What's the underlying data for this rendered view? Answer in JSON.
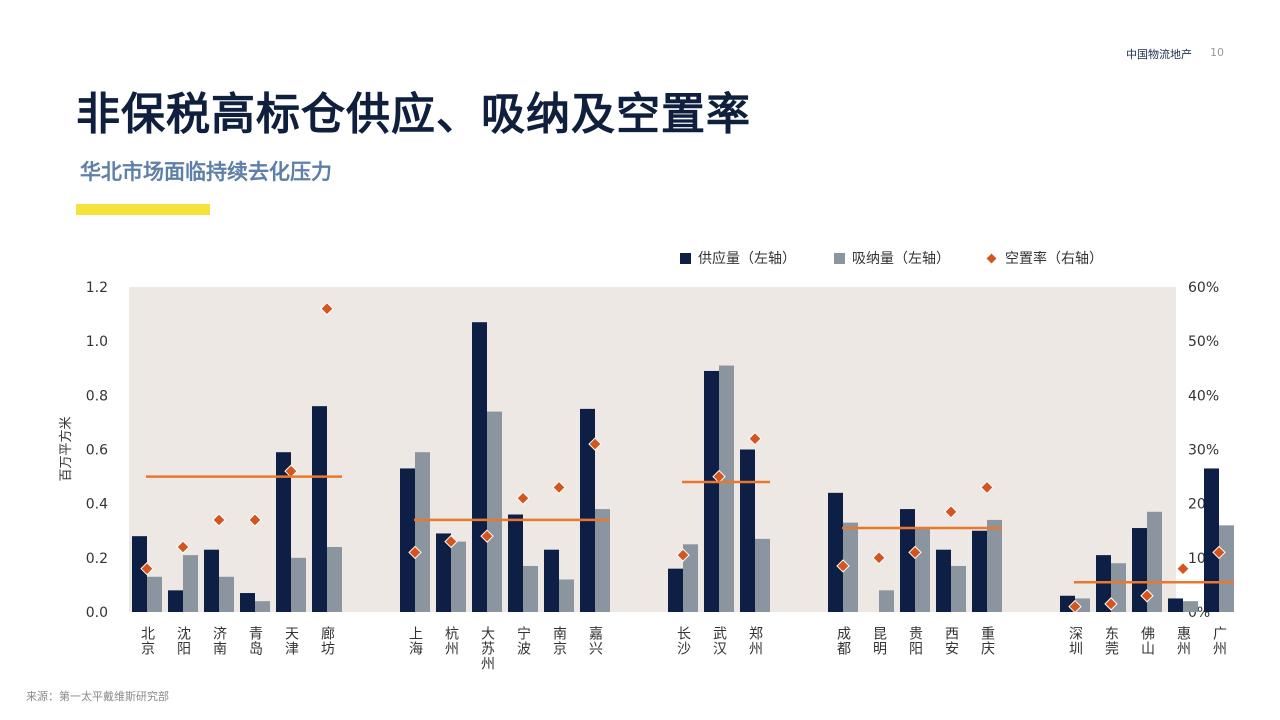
{
  "header": {
    "brand": "中国物流地产",
    "page_number": "10"
  },
  "title": "非保税高标仓供应、吸纳及空置率",
  "subtitle": "华北市场面临持续去化压力",
  "source": "来源：第一太平戴维斯研究部",
  "colors": {
    "supply": "#0e1f45",
    "absorption": "#8b959f",
    "vacancy": "#d4561e",
    "average_line": "#e9772e",
    "plot_bg": "#ede8e3",
    "accent": "#f7e13b"
  },
  "chart_data": {
    "type": "bar",
    "ylabel": "百万平方米",
    "ylim": [
      0,
      1.2
    ],
    "y_ticks": [
      "0.0",
      "0.2",
      "0.4",
      "0.6",
      "0.8",
      "1.0",
      "1.2"
    ],
    "y2lim": [
      0,
      60
    ],
    "y2_ticks": [
      "0%",
      "10%",
      "20%",
      "30%",
      "40%",
      "50%",
      "60%"
    ],
    "legend": {
      "placement": "top-right",
      "supply": "供应量（左轴）",
      "absorption": "吸纳量（左轴）",
      "vacancy": "空置率（右轴）"
    },
    "groups": [
      {
        "categories": [
          "北京",
          "沈阳",
          "济南",
          "青岛",
          "天津",
          "廊坊"
        ],
        "supply": [
          0.28,
          0.08,
          0.23,
          0.07,
          0.59,
          0.76
        ],
        "absorption": [
          0.13,
          0.21,
          0.13,
          0.04,
          0.2,
          0.24
        ],
        "vacancy": [
          8,
          12,
          17,
          17,
          26,
          56
        ],
        "average": 25
      },
      {
        "categories": [
          "上海",
          "杭州",
          "大苏州",
          "宁波",
          "南京",
          "嘉兴"
        ],
        "supply": [
          0.53,
          0.29,
          1.07,
          0.36,
          0.23,
          0.75
        ],
        "absorption": [
          0.59,
          0.26,
          0.74,
          0.17,
          0.12,
          0.38
        ],
        "vacancy": [
          11,
          13,
          14,
          21,
          23,
          31
        ],
        "average": 17
      },
      {
        "categories": [
          "长沙",
          "武汉",
          "郑州"
        ],
        "supply": [
          0.16,
          0.89,
          0.6
        ],
        "absorption": [
          0.25,
          0.91,
          0.27
        ],
        "vacancy": [
          10.5,
          25,
          32
        ],
        "average": 24
      },
      {
        "categories": [
          "成都",
          "昆明",
          "贵阳",
          "西安",
          "重庆"
        ],
        "supply": [
          0.44,
          0,
          0.38,
          0.23,
          0.3
        ],
        "absorption": [
          0.33,
          0.08,
          0.31,
          0.17,
          0.34
        ],
        "vacancy": [
          8.5,
          10,
          11,
          18.5,
          23
        ],
        "average": 15.5
      },
      {
        "categories": [
          "深圳",
          "东莞",
          "佛山",
          "惠州",
          "广州"
        ],
        "supply": [
          0.06,
          0.21,
          0.31,
          0.05,
          0.53
        ],
        "absorption": [
          0.05,
          0.18,
          0.37,
          0.04,
          0.32
        ],
        "vacancy": [
          1,
          1.5,
          3,
          8,
          11
        ],
        "average": 5.5
      }
    ]
  }
}
